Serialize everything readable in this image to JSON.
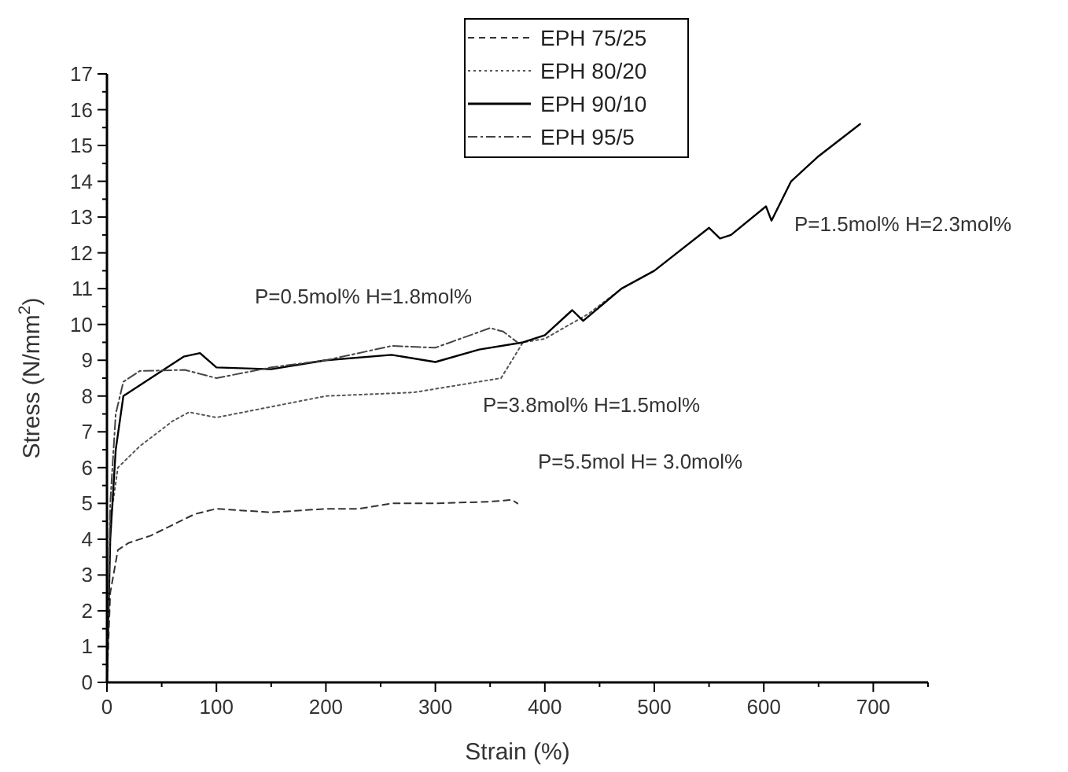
{
  "chart_data": {
    "type": "line",
    "xlabel": "Strain (%)",
    "ylabel": "Stress (N/mm$^{2}$)",
    "xlim": [
      0,
      750
    ],
    "xticks": [
      0,
      {
        "value": 50,
        "label": null
      },
      100,
      {
        "value": 150,
        "label": null
      },
      200,
      {
        "value": 250,
        "label": null
      },
      300,
      {
        "value": 350,
        "label": null
      },
      400,
      {
        "value": 450,
        "label": null
      },
      500,
      {
        "value": 550,
        "label": null
      },
      600,
      {
        "value": 650,
        "label": null
      },
      700,
      {
        "value": 750,
        "label": null
      }
    ],
    "ylim": [
      0,
      17
    ],
    "yticks": [
      0,
      {
        "value": 0.5,
        "label": null
      },
      1,
      {
        "value": 1.5,
        "label": null
      },
      2,
      {
        "value": 2.5,
        "label": null
      },
      3,
      {
        "value": 3.5,
        "label": null
      },
      4,
      {
        "value": 4.5,
        "label": null
      },
      5,
      {
        "value": 5.5,
        "label": null
      },
      6,
      {
        "value": 6.5,
        "label": null
      },
      7,
      {
        "value": 7.5,
        "label": null
      },
      8,
      {
        "value": 8.5,
        "label": null
      },
      9,
      {
        "value": 9.5,
        "label": null
      },
      10,
      {
        "value": 10.5,
        "label": null
      },
      11,
      {
        "value": 11.5,
        "label": null
      },
      12,
      {
        "value": 12.5,
        "label": null
      },
      13,
      {
        "value": 13.5,
        "label": null
      },
      14,
      {
        "value": 14.5,
        "label": null
      },
      15,
      {
        "value": 15.5,
        "label": null
      },
      16,
      {
        "value": 16.5,
        "label": null
      },
      17
    ],
    "grid": false,
    "legend": "top",
    "series": [
      {
        "name": "EPH 75/25",
        "color": "#333333",
        "line_style": "dashed",
        "x": [
          0,
          3,
          10,
          20,
          40,
          60,
          80,
          100,
          150,
          200,
          230,
          260,
          300,
          350,
          370,
          375
        ],
        "values": [
          0,
          2.5,
          3.7,
          3.9,
          4.1,
          4.4,
          4.7,
          4.85,
          4.75,
          4.85,
          4.85,
          5.0,
          5.0,
          5.05,
          5.1,
          5.0
        ]
      },
      {
        "name": "EPH 80/20",
        "color": "#555555",
        "line_style": "dotted",
        "x": [
          0,
          3,
          10,
          30,
          60,
          75,
          100,
          150,
          200,
          280,
          340,
          360,
          370,
          380,
          400,
          440,
          470
        ],
        "values": [
          0,
          4.5,
          6.0,
          6.6,
          7.3,
          7.55,
          7.4,
          7.7,
          8.0,
          8.1,
          8.4,
          8.5,
          9.0,
          9.5,
          9.6,
          10.3,
          11.0
        ]
      },
      {
        "name": "EPH 90/10",
        "color": "#000000",
        "line_style": "solid",
        "x": [
          0,
          3,
          8,
          15,
          40,
          70,
          85,
          100,
          150,
          200,
          260,
          300,
          340,
          380,
          400,
          425,
          435,
          470,
          500,
          550,
          560,
          570,
          602,
          607,
          625,
          650,
          688
        ],
        "values": [
          0,
          4,
          6.5,
          8.0,
          8.5,
          9.1,
          9.2,
          8.8,
          8.75,
          9.0,
          9.15,
          8.95,
          9.3,
          9.5,
          9.7,
          10.4,
          10.1,
          11.0,
          11.5,
          12.7,
          12.4,
          12.5,
          13.3,
          12.9,
          14.0,
          14.7,
          15.6
        ]
      },
      {
        "name": "EPH 95/5",
        "color": "#444444",
        "line_style": "dashdot",
        "x": [
          0,
          3,
          8,
          15,
          30,
          71,
          100,
          150,
          200,
          260,
          300,
          350,
          362,
          375
        ],
        "values": [
          0,
          5,
          7.5,
          8.4,
          8.7,
          8.73,
          8.5,
          8.8,
          9.0,
          9.4,
          9.35,
          9.9,
          9.8,
          9.5
        ]
      }
    ],
    "annotations": [
      "P=0.5mol% H=1.8mol%",
      "P=1.5mol% H=2.3mol%",
      "P=3.8mol% H=1.5mol%",
      "P=5.5mol H= 3.0mol%"
    ]
  }
}
